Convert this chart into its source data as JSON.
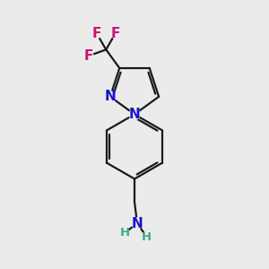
{
  "bg_color": "#ebebeb",
  "bond_color": "#1a1a1a",
  "nitrogen_color": "#1414cc",
  "fluorine_color": "#cc1177",
  "hydrogen_color": "#3aaa90",
  "bond_width": 1.6,
  "font_size_atom": 11,
  "font_size_H": 9.5,
  "xlim": [
    0,
    10
  ],
  "ylim": [
    0,
    10
  ]
}
